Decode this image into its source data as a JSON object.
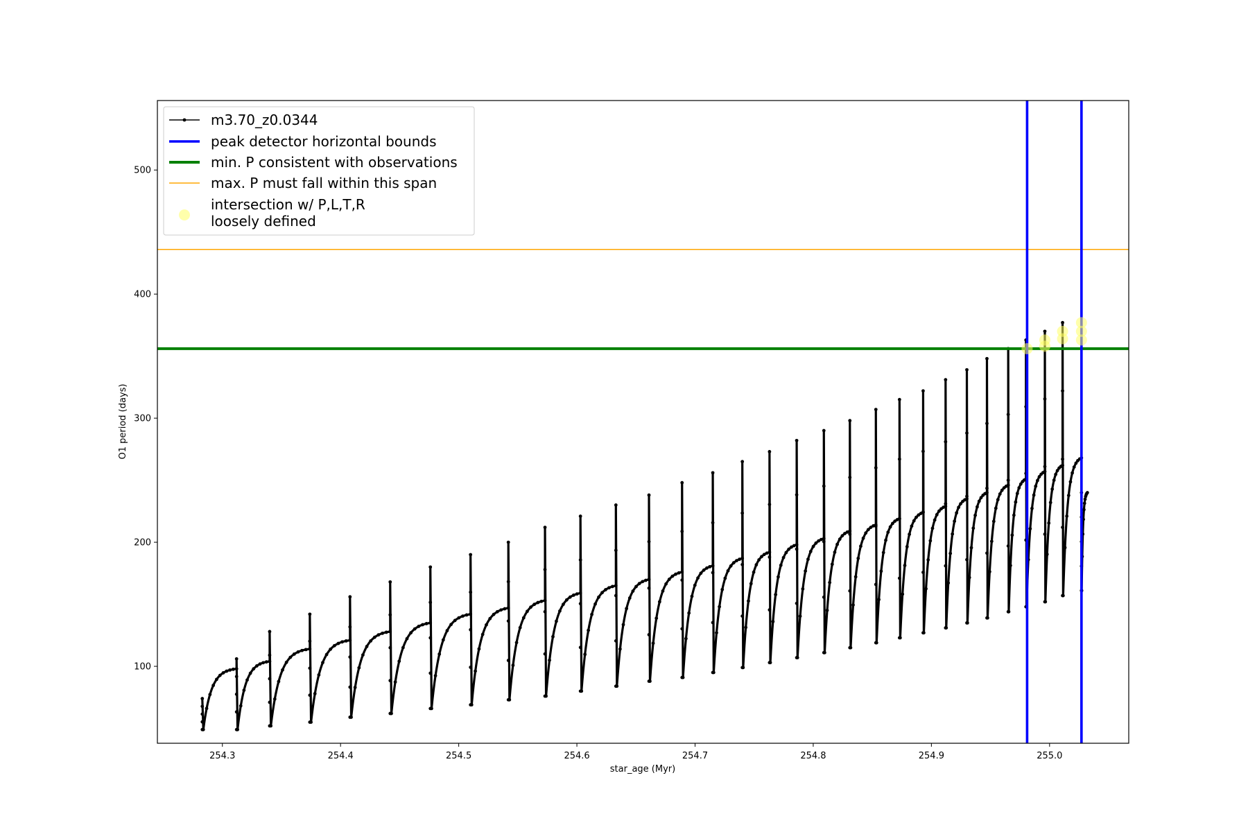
{
  "chart_data": {
    "type": "line",
    "title": "",
    "xlabel": "star_age (Myr)",
    "ylabel": "O1 period (days)",
    "xlim": [
      254.245,
      255.067
    ],
    "ylim": [
      38,
      556
    ],
    "xticks": [
      254.3,
      254.4,
      254.5,
      254.6,
      254.7,
      254.8,
      254.9,
      255.0
    ],
    "xtick_labels": [
      "254.3",
      "254.4",
      "254.5",
      "254.6",
      "254.7",
      "254.8",
      "254.9",
      "255.0"
    ],
    "yticks": [
      100,
      200,
      300,
      400,
      500
    ],
    "ytick_labels": [
      "100",
      "200",
      "300",
      "400",
      "500"
    ],
    "grid": false,
    "legend_position": "upper-left",
    "series": [
      {
        "name": "m3.70_z0.0344",
        "kind": "pulsation-cycles",
        "color": "#000000",
        "x_start": 254.283,
        "x_end": 255.032,
        "cycles": [
          {
            "start": 254.283,
            "trough": 49,
            "plateau": 98,
            "spike": 74
          },
          {
            "start": 254.312,
            "trough": 49,
            "plateau": 104,
            "spike": 106
          },
          {
            "start": 254.34,
            "trough": 52,
            "plateau": 114,
            "spike": 128
          },
          {
            "start": 254.374,
            "trough": 55,
            "plateau": 121,
            "spike": 142
          },
          {
            "start": 254.408,
            "trough": 59,
            "plateau": 128,
            "spike": 156
          },
          {
            "start": 254.442,
            "trough": 62,
            "plateau": 135,
            "spike": 168
          },
          {
            "start": 254.476,
            "trough": 66,
            "plateau": 142,
            "spike": 180
          },
          {
            "start": 254.51,
            "trough": 69,
            "plateau": 147,
            "spike": 190
          },
          {
            "start": 254.542,
            "trough": 73,
            "plateau": 153,
            "spike": 200
          },
          {
            "start": 254.573,
            "trough": 76,
            "plateau": 159,
            "spike": 212
          },
          {
            "start": 254.603,
            "trough": 80,
            "plateau": 165,
            "spike": 221
          },
          {
            "start": 254.633,
            "trough": 84,
            "plateau": 170,
            "spike": 230
          },
          {
            "start": 254.661,
            "trough": 88,
            "plateau": 176,
            "spike": 238
          },
          {
            "start": 254.689,
            "trough": 91,
            "plateau": 181,
            "spike": 248
          },
          {
            "start": 254.715,
            "trough": 95,
            "plateau": 187,
            "spike": 256
          },
          {
            "start": 254.74,
            "trough": 99,
            "plateau": 192,
            "spike": 265
          },
          {
            "start": 254.763,
            "trough": 103,
            "plateau": 198,
            "spike": 273
          },
          {
            "start": 254.786,
            "trough": 107,
            "plateau": 203,
            "spike": 282
          },
          {
            "start": 254.809,
            "trough": 111,
            "plateau": 209,
            "spike": 290
          },
          {
            "start": 254.831,
            "trough": 115,
            "plateau": 214,
            "spike": 298
          },
          {
            "start": 254.853,
            "trough": 119,
            "plateau": 219,
            "spike": 307
          },
          {
            "start": 254.873,
            "trough": 123,
            "plateau": 224,
            "spike": 315
          },
          {
            "start": 254.893,
            "trough": 127,
            "plateau": 229,
            "spike": 322
          },
          {
            "start": 254.912,
            "trough": 131,
            "plateau": 235,
            "spike": 331
          },
          {
            "start": 254.93,
            "trough": 135,
            "plateau": 240,
            "spike": 339
          },
          {
            "start": 254.947,
            "trough": 139,
            "plateau": 246,
            "spike": 348
          },
          {
            "start": 254.965,
            "trough": 144,
            "plateau": 251,
            "spike": 356
          },
          {
            "start": 254.98,
            "trough": 148,
            "plateau": 257,
            "spike": 363
          },
          {
            "start": 254.996,
            "trough": 152,
            "plateau": 262,
            "spike": 370
          },
          {
            "start": 255.011,
            "trough": 157,
            "plateau": 268,
            "spike": 377
          },
          {
            "start": 255.027,
            "trough": 161,
            "plateau": 240,
            "spike": 240
          }
        ]
      },
      {
        "name": "peak detector horizontal bounds",
        "kind": "vline",
        "color": "#0000ff",
        "x": [
          254.981,
          255.027
        ]
      },
      {
        "name": "min. P consistent with observations",
        "kind": "hline",
        "color": "#008000",
        "y": 356
      },
      {
        "name": "max. P must fall within this span",
        "kind": "hline",
        "color": "#ffa500",
        "y": 436
      },
      {
        "name": "intersection w/ P,L,T,R\nloosely defined",
        "kind": "scatter",
        "color": "#ffff66",
        "points": [
          {
            "x": 254.981,
            "y": 356
          },
          {
            "x": 254.996,
            "y": 363
          },
          {
            "x": 254.996,
            "y": 358
          },
          {
            "x": 255.011,
            "y": 370
          },
          {
            "x": 255.011,
            "y": 364
          },
          {
            "x": 255.027,
            "y": 377
          },
          {
            "x": 255.027,
            "y": 370
          },
          {
            "x": 255.027,
            "y": 363
          }
        ]
      }
    ]
  }
}
